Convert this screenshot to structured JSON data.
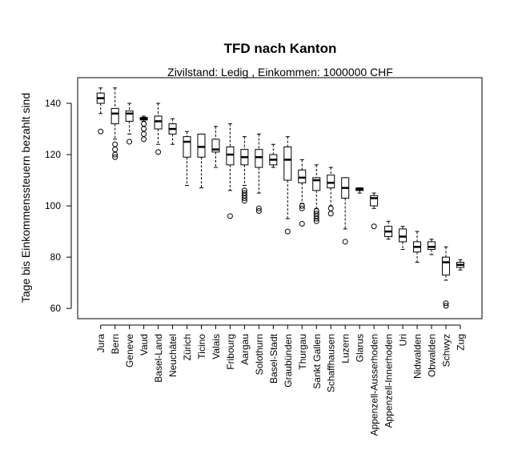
{
  "chart_data": {
    "type": "boxplot",
    "title": "TFD nach Kanton",
    "subtitle": "Zivilstand: Ledig , Einkommen: 1000000 CHF",
    "xlabel": "",
    "ylabel": "Tage bis Einkommenssteuern bezahlt sind",
    "ylim": [
      56,
      150
    ],
    "yticks": [
      60,
      80,
      100,
      120,
      140
    ],
    "grid": false,
    "categories": [
      "Jura",
      "Bern",
      "Geneve",
      "Vaud",
      "Basel-Land",
      "Neuchâtel",
      "Zürich",
      "Ticino",
      "Valais",
      "Fribourg",
      "Aargau",
      "Solothurn",
      "Basel-Stadt",
      "Graubünden",
      "Thurgau",
      "Sankt Gallen",
      "Schaffhausen",
      "Luzern",
      "Glarus",
      "Appenzell-Ausserhoden",
      "Appenzell-Innerhoden",
      "Uri",
      "Nidwalden",
      "Obwalden",
      "Schwyz",
      "Zug"
    ],
    "boxes": [
      {
        "min": 136,
        "q1": 140,
        "median": 142,
        "q3": 144,
        "max": 146,
        "outliers": [
          129
        ]
      },
      {
        "min": 126,
        "q1": 132,
        "median": 136,
        "q3": 138,
        "max": 146,
        "outliers": [
          119,
          120,
          122,
          124
        ]
      },
      {
        "min": 128,
        "q1": 133,
        "median": 136,
        "q3": 137,
        "max": 140,
        "outliers": [
          125
        ]
      },
      {
        "min": 133,
        "q1": 133.5,
        "median": 134,
        "q3": 134.5,
        "max": 135,
        "outliers": [
          126,
          128,
          130,
          132
        ]
      },
      {
        "min": 124,
        "q1": 130,
        "median": 133,
        "q3": 135,
        "max": 140,
        "outliers": [
          121
        ]
      },
      {
        "min": 124,
        "q1": 128,
        "median": 130,
        "q3": 132,
        "max": 134,
        "outliers": []
      },
      {
        "min": 108,
        "q1": 119,
        "median": 125,
        "q3": 127,
        "max": 129,
        "outliers": []
      },
      {
        "min": 107,
        "q1": 119,
        "median": 123,
        "q3": 128,
        "max": 128,
        "outliers": []
      },
      {
        "min": 115,
        "q1": 121,
        "median": 122,
        "q3": 126,
        "max": 131,
        "outliers": []
      },
      {
        "min": 106,
        "q1": 116,
        "median": 120,
        "q3": 123,
        "max": 132,
        "outliers": [
          96
        ]
      },
      {
        "min": 108,
        "q1": 116,
        "median": 119,
        "q3": 122,
        "max": 127,
        "outliers": [
          102,
          103,
          104,
          105,
          106
        ]
      },
      {
        "min": 105,
        "q1": 115,
        "median": 119,
        "q3": 122,
        "max": 128,
        "outliers": [
          98,
          99
        ]
      },
      {
        "min": 115,
        "q1": 116,
        "median": 118,
        "q3": 120,
        "max": 124,
        "outliers": []
      },
      {
        "min": 95,
        "q1": 110,
        "median": 118,
        "q3": 123,
        "max": 127,
        "outliers": [
          90
        ]
      },
      {
        "min": 101,
        "q1": 109,
        "median": 111,
        "q3": 114,
        "max": 118,
        "outliers": [
          93,
          99,
          100
        ]
      },
      {
        "min": 99,
        "q1": 106,
        "median": 110,
        "q3": 111,
        "max": 116,
        "outliers": [
          94,
          95,
          96,
          97,
          98
        ]
      },
      {
        "min": 100,
        "q1": 107,
        "median": 109,
        "q3": 112,
        "max": 115,
        "outliers": [
          97,
          99
        ]
      },
      {
        "min": 91,
        "q1": 103,
        "median": 107,
        "q3": 111,
        "max": 111,
        "outliers": [
          86
        ]
      },
      {
        "min": 105,
        "q1": 106,
        "median": 106.5,
        "q3": 107,
        "max": 107,
        "outliers": []
      },
      {
        "min": 99,
        "q1": 100,
        "median": 103,
        "q3": 104,
        "max": 105,
        "outliers": [
          92
        ]
      },
      {
        "min": 87,
        "q1": 88,
        "median": 90,
        "q3": 92,
        "max": 94,
        "outliers": []
      },
      {
        "min": 83,
        "q1": 86,
        "median": 88,
        "q3": 91,
        "max": 92,
        "outliers": []
      },
      {
        "min": 78,
        "q1": 82,
        "median": 84,
        "q3": 86,
        "max": 90,
        "outliers": []
      },
      {
        "min": 81,
        "q1": 83,
        "median": 84,
        "q3": 86,
        "max": 87,
        "outliers": []
      },
      {
        "min": 71,
        "q1": 73,
        "median": 78,
        "q3": 80,
        "max": 84,
        "outliers": [
          61,
          62
        ]
      },
      {
        "min": 75,
        "q1": 76,
        "median": 77,
        "q3": 78,
        "max": 79,
        "outliers": []
      }
    ]
  }
}
